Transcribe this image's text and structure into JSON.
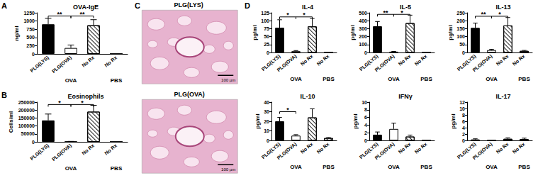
{
  "panel_labels": [
    "A",
    "B",
    "C",
    "D"
  ],
  "chart_data": [
    {
      "type": "bar",
      "title": "OVA-IgE",
      "y_label": "ng/ml",
      "categories": [
        "PLG(LYS)",
        "PLG(OVA)",
        "No Rx",
        "No Rx"
      ],
      "groups": [
        {
          "label": "OVA",
          "span": [
            0,
            2
          ]
        },
        {
          "label": "PBS",
          "span": [
            3,
            3
          ]
        }
      ],
      "values": [
        900,
        180,
        870,
        0
      ],
      "errors": [
        180,
        90,
        170,
        null
      ],
      "colors": [
        "#000000",
        "#ffffff",
        "#ffffff",
        "#ffffff"
      ],
      "ylim": [
        0,
        1250
      ],
      "yticks": [
        0,
        250,
        500,
        750,
        1000,
        1250
      ],
      "grid": false,
      "significance": [
        {
          "between": [
            0,
            1
          ],
          "y": 1150,
          "label": "**"
        },
        {
          "between": [
            1,
            2
          ],
          "y": 1150,
          "label": "**"
        }
      ]
    },
    {
      "type": "bar",
      "title": "Eosinophils",
      "y_label": "Cells/ml",
      "categories": [
        "PLG(LYS)",
        "PLG(OVA)",
        "No Rx",
        "No Rx"
      ],
      "groups": [
        {
          "label": "OVA",
          "span": [
            0,
            2
          ]
        },
        {
          "label": "PBS",
          "span": [
            3,
            3
          ]
        }
      ],
      "values": [
        135000,
        2000,
        190000,
        0
      ],
      "errors": [
        40000,
        1000,
        40000,
        null
      ],
      "colors": [
        "#000000",
        "#ffffff",
        "#ffffff",
        "#ffffff"
      ],
      "ylim": [
        0,
        250000
      ],
      "yticks": [
        0,
        50000,
        100000,
        150000,
        200000,
        250000
      ],
      "grid": false,
      "significance": [
        {
          "between": [
            0,
            1
          ],
          "y": 235000,
          "label": "*"
        },
        {
          "between": [
            1,
            2
          ],
          "y": 235000,
          "label": "*"
        }
      ]
    },
    {
      "type": "bar",
      "title": "IL-4",
      "y_label": "pg/ml",
      "categories": [
        "PLG(LYS)",
        "PLG(OVA)",
        "No Rx",
        "No Rx"
      ],
      "groups": [
        {
          "label": "OVA",
          "span": [
            0,
            2
          ]
        },
        {
          "label": "PBS",
          "span": [
            3,
            3
          ]
        }
      ],
      "values": [
        78,
        4,
        82,
        0
      ],
      "errors": [
        25,
        2,
        25,
        null
      ],
      "colors": [
        "#000000",
        "#ffffff",
        "#ffffff",
        "#ffffff"
      ],
      "ylim": [
        0,
        125
      ],
      "yticks": [
        0,
        25,
        50,
        75,
        100,
        125
      ],
      "grid": false,
      "significance": [
        {
          "between": [
            0,
            1
          ],
          "y": 112,
          "label": "*"
        },
        {
          "between": [
            1,
            2
          ],
          "y": 112,
          "label": "*"
        }
      ]
    },
    {
      "type": "bar",
      "title": "IL-5",
      "y_label": "pg/ml",
      "categories": [
        "PLG(LYS)",
        "PLG(OVA)",
        "No Rx",
        "No Rx"
      ],
      "groups": [
        {
          "label": "OVA",
          "span": [
            0,
            2
          ]
        },
        {
          "label": "PBS",
          "span": [
            3,
            3
          ]
        }
      ],
      "values": [
        330,
        10,
        370,
        0
      ],
      "errors": [
        60,
        3,
        100,
        null
      ],
      "colors": [
        "#000000",
        "#ffffff",
        "#ffffff",
        "#ffffff"
      ],
      "ylim": [
        0,
        500
      ],
      "yticks": [
        0,
        100,
        200,
        300,
        400,
        500
      ],
      "grid": false,
      "significance": [
        {
          "between": [
            0,
            1
          ],
          "y": 480,
          "label": "**"
        },
        {
          "between": [
            1,
            2
          ],
          "y": 480,
          "label": "*"
        }
      ]
    },
    {
      "type": "bar",
      "title": "IL-13",
      "y_label": "pg/ml",
      "categories": [
        "PLG(LYS)",
        "PLG(OVA)",
        "No Rx",
        "No Rx"
      ],
      "groups": [
        {
          "label": "OVA",
          "span": [
            0,
            2
          ]
        },
        {
          "label": "PBS",
          "span": [
            3,
            3
          ]
        }
      ],
      "values": [
        155,
        15,
        170,
        10
      ],
      "errors": [
        30,
        5,
        50,
        3
      ],
      "colors": [
        "#000000",
        "#ffffff",
        "#ffffff",
        "#ffffff"
      ],
      "ylim": [
        0,
        250
      ],
      "yticks": [
        0,
        50,
        100,
        150,
        200,
        250
      ],
      "grid": false,
      "significance": [
        {
          "between": [
            0,
            1
          ],
          "y": 228,
          "label": "**"
        },
        {
          "between": [
            1,
            2
          ],
          "y": 228,
          "label": "*"
        }
      ]
    },
    {
      "type": "bar",
      "title": "IL-10",
      "y_label": "pg/ml",
      "categories": [
        "PLG(LYS)",
        "PLG(OVA)",
        "No Rx",
        "No Rx"
      ],
      "groups": [
        {
          "label": "OVA",
          "span": [
            0,
            2
          ]
        },
        {
          "label": "PBS",
          "span": [
            3,
            3
          ]
        }
      ],
      "values": [
        20,
        5,
        24,
        2.5
      ],
      "errors": [
        4,
        1,
        9,
        0.5
      ],
      "colors": [
        "#000000",
        "#ffffff",
        "#ffffff",
        "#ffffff"
      ],
      "ylim": [
        0,
        40
      ],
      "yticks": [
        0,
        10,
        20,
        30,
        40
      ],
      "grid": false,
      "significance": [
        {
          "between": [
            0,
            1
          ],
          "y": 30,
          "label": "*"
        }
      ]
    },
    {
      "type": "bar",
      "title": "IFNγ",
      "y_label": "pg/ml",
      "categories": [
        "PLG(LYS)",
        "PLG(OVA)",
        "No Rx",
        "No Rx"
      ],
      "groups": [
        {
          "label": "OVA",
          "span": [
            0,
            2
          ]
        },
        {
          "label": "PBS",
          "span": [
            3,
            3
          ]
        }
      ],
      "values": [
        1.5,
        3,
        1,
        0
      ],
      "errors": [
        0.7,
        1.5,
        0.4,
        null
      ],
      "colors": [
        "#000000",
        "#ffffff",
        "#ffffff",
        "#ffffff"
      ],
      "ylim": [
        0,
        10
      ],
      "yticks": [
        0,
        2,
        4,
        6,
        8,
        10
      ],
      "grid": false,
      "significance": []
    },
    {
      "type": "bar",
      "title": "IL-17",
      "y_label": "pg/ml",
      "categories": [
        "PLG(LYS)",
        "PLG(OVA)",
        "No Rx",
        "No Rx"
      ],
      "groups": [
        {
          "label": "OVA",
          "span": [
            0,
            2
          ]
        },
        {
          "label": "PBS",
          "span": [
            3,
            3
          ]
        }
      ],
      "values": [
        0.3,
        0.1,
        0.5,
        0.4
      ],
      "errors": [
        0.2,
        null,
        0.3,
        0.3
      ],
      "colors": [
        "#000000",
        "#ffffff",
        "#ffffff",
        "#ffffff"
      ],
      "ylim": [
        0,
        12
      ],
      "yticks": [
        0,
        2,
        4,
        6,
        8,
        10,
        12
      ],
      "grid": false,
      "significance": []
    }
  ],
  "panel_C": {
    "images": [
      {
        "title": "PLG(LYS)",
        "scale_bar": "100 µm"
      },
      {
        "title": "PLG(OVA)",
        "scale_bar": "100 µm"
      }
    ]
  }
}
